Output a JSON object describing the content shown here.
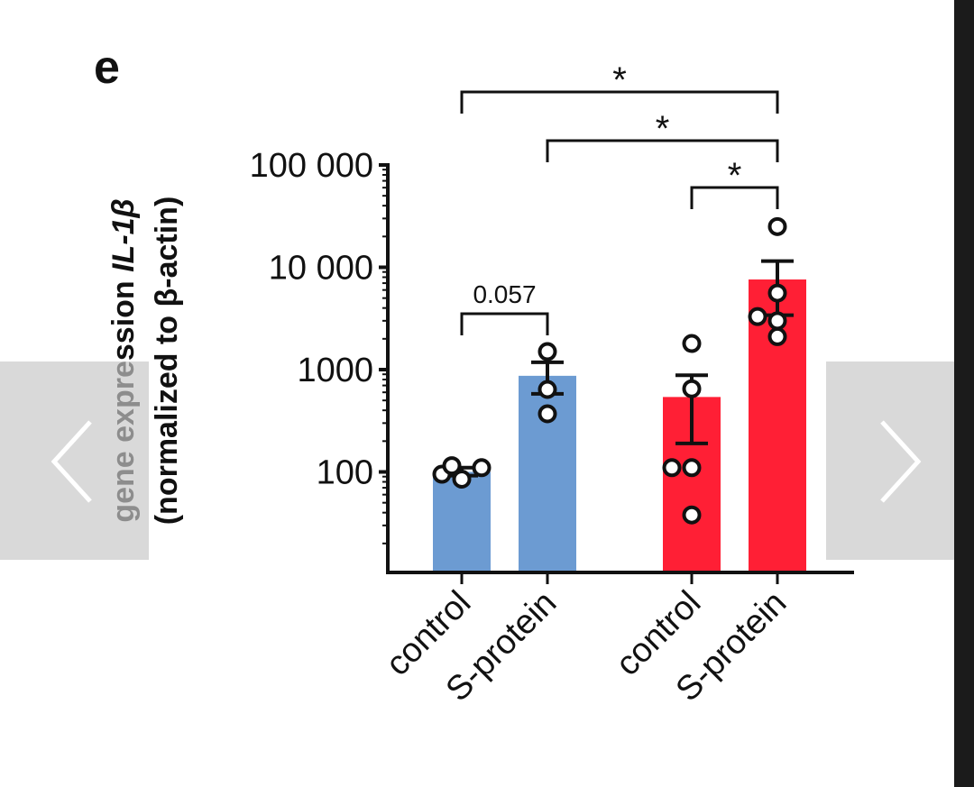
{
  "panel_label": "e",
  "colors": {
    "group1": "#6c9bd2",
    "group2": "#ff1f35",
    "ink": "#111111",
    "strip": "#1b1b1b",
    "nav_bg": "#c8c8c8"
  },
  "nav": {
    "prev_icon": "chevron-left-icon",
    "next_icon": "chevron-right-icon"
  },
  "chart_data": {
    "type": "bar",
    "yscale": "log",
    "ylabel_line1_prefix": "gene expression ",
    "ylabel_line1_gene": "IL-1β",
    "ylabel_line2": "(normalized to β-actin)",
    "ylim": [
      10,
      100000
    ],
    "yticks": [
      {
        "value": 100,
        "label": "100"
      },
      {
        "value": 1000,
        "label": "1000"
      },
      {
        "value": 10000,
        "label": "10 000"
      },
      {
        "value": 100000,
        "label": "100 000"
      }
    ],
    "categories": [
      "control",
      "S-protein",
      "control",
      "S-protein"
    ],
    "bars": [
      {
        "category": "control",
        "group": 1,
        "mean": 100,
        "sem": [
          92,
          110
        ],
        "points": [
          85,
          95,
          110,
          115
        ]
      },
      {
        "category": "S-protein",
        "group": 1,
        "mean": 870,
        "sem": [
          580,
          1180
        ],
        "points": [
          370,
          640,
          1500
        ]
      },
      {
        "category": "control",
        "group": 2,
        "mean": 540,
        "sem": [
          190,
          880
        ],
        "points": [
          38,
          110,
          110,
          650,
          1800
        ]
      },
      {
        "category": "S-protein",
        "group": 2,
        "mean": 7600,
        "sem": [
          3400,
          11500
        ],
        "points": [
          2100,
          3000,
          3300,
          5600,
          25000
        ]
      }
    ],
    "annotations": [
      {
        "from": 0,
        "to": 1,
        "label": "0.057"
      },
      {
        "from": 2,
        "to": 3,
        "label": "*"
      },
      {
        "from": 1,
        "to": 3,
        "label": "*"
      },
      {
        "from": 0,
        "to": 3,
        "label": "*"
      }
    ]
  }
}
